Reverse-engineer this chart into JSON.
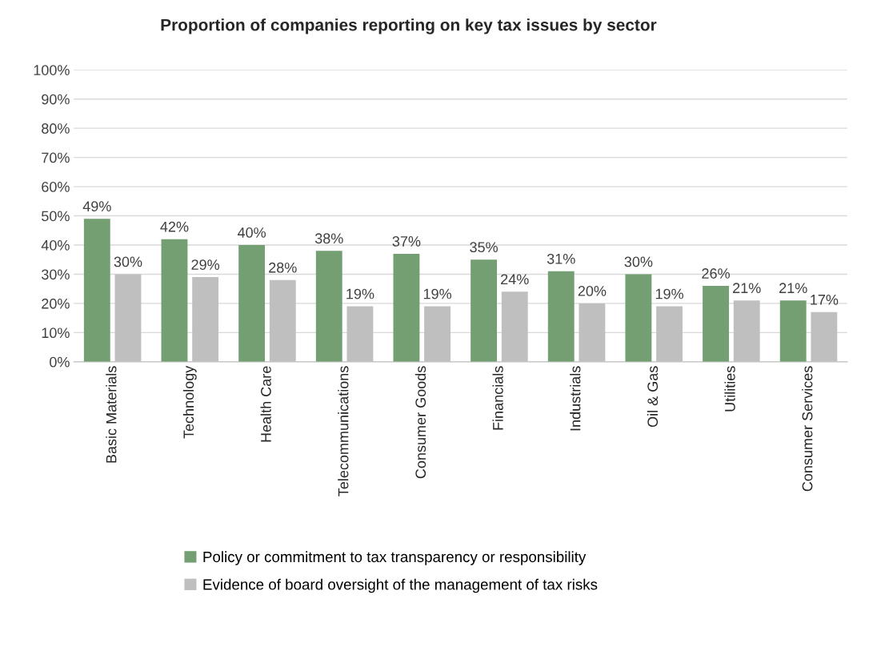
{
  "chart_data": {
    "type": "bar",
    "title": "Proportion of companies reporting on key tax issues by sector",
    "categories": [
      "Basic Materials",
      "Technology",
      "Health Care",
      "Telecommunications",
      "Consumer Goods",
      "Financials",
      "Industrials",
      "Oil & Gas",
      "Utilities",
      "Consumer Services"
    ],
    "series": [
      {
        "name": "Policy or commitment to tax transparency or responsibility",
        "color": "#739f73",
        "values": [
          49,
          42,
          40,
          38,
          37,
          35,
          31,
          30,
          26,
          21
        ]
      },
      {
        "name": "Evidence of board oversight of the management of tax risks",
        "color": "#bfbfbf",
        "values": [
          30,
          29,
          28,
          19,
          19,
          24,
          20,
          19,
          21,
          17
        ]
      }
    ],
    "value_labels": [
      [
        "49%",
        "42%",
        "40%",
        "38%",
        "37%",
        "35%",
        "31%",
        "30%",
        "26%",
        "21%"
      ],
      [
        "30%",
        "29%",
        "28%",
        "19%",
        "19%",
        "24%",
        "20%",
        "19%",
        "21%",
        "17%"
      ]
    ],
    "ylim": [
      0,
      100
    ],
    "yticks": [
      {
        "value": 0,
        "label": "0%"
      },
      {
        "value": 10,
        "label": "10%"
      },
      {
        "value": 20,
        "label": "20%"
      },
      {
        "value": 30,
        "label": "30%"
      },
      {
        "value": 40,
        "label": "40%"
      },
      {
        "value": 50,
        "label": "50%"
      },
      {
        "value": 60,
        "label": "60%"
      },
      {
        "value": 70,
        "label": "70%"
      },
      {
        "value": 80,
        "label": "80%"
      },
      {
        "value": 90,
        "label": "90%"
      },
      {
        "value": 100,
        "label": "100%"
      }
    ],
    "grid": "y",
    "legend": "bottom"
  }
}
